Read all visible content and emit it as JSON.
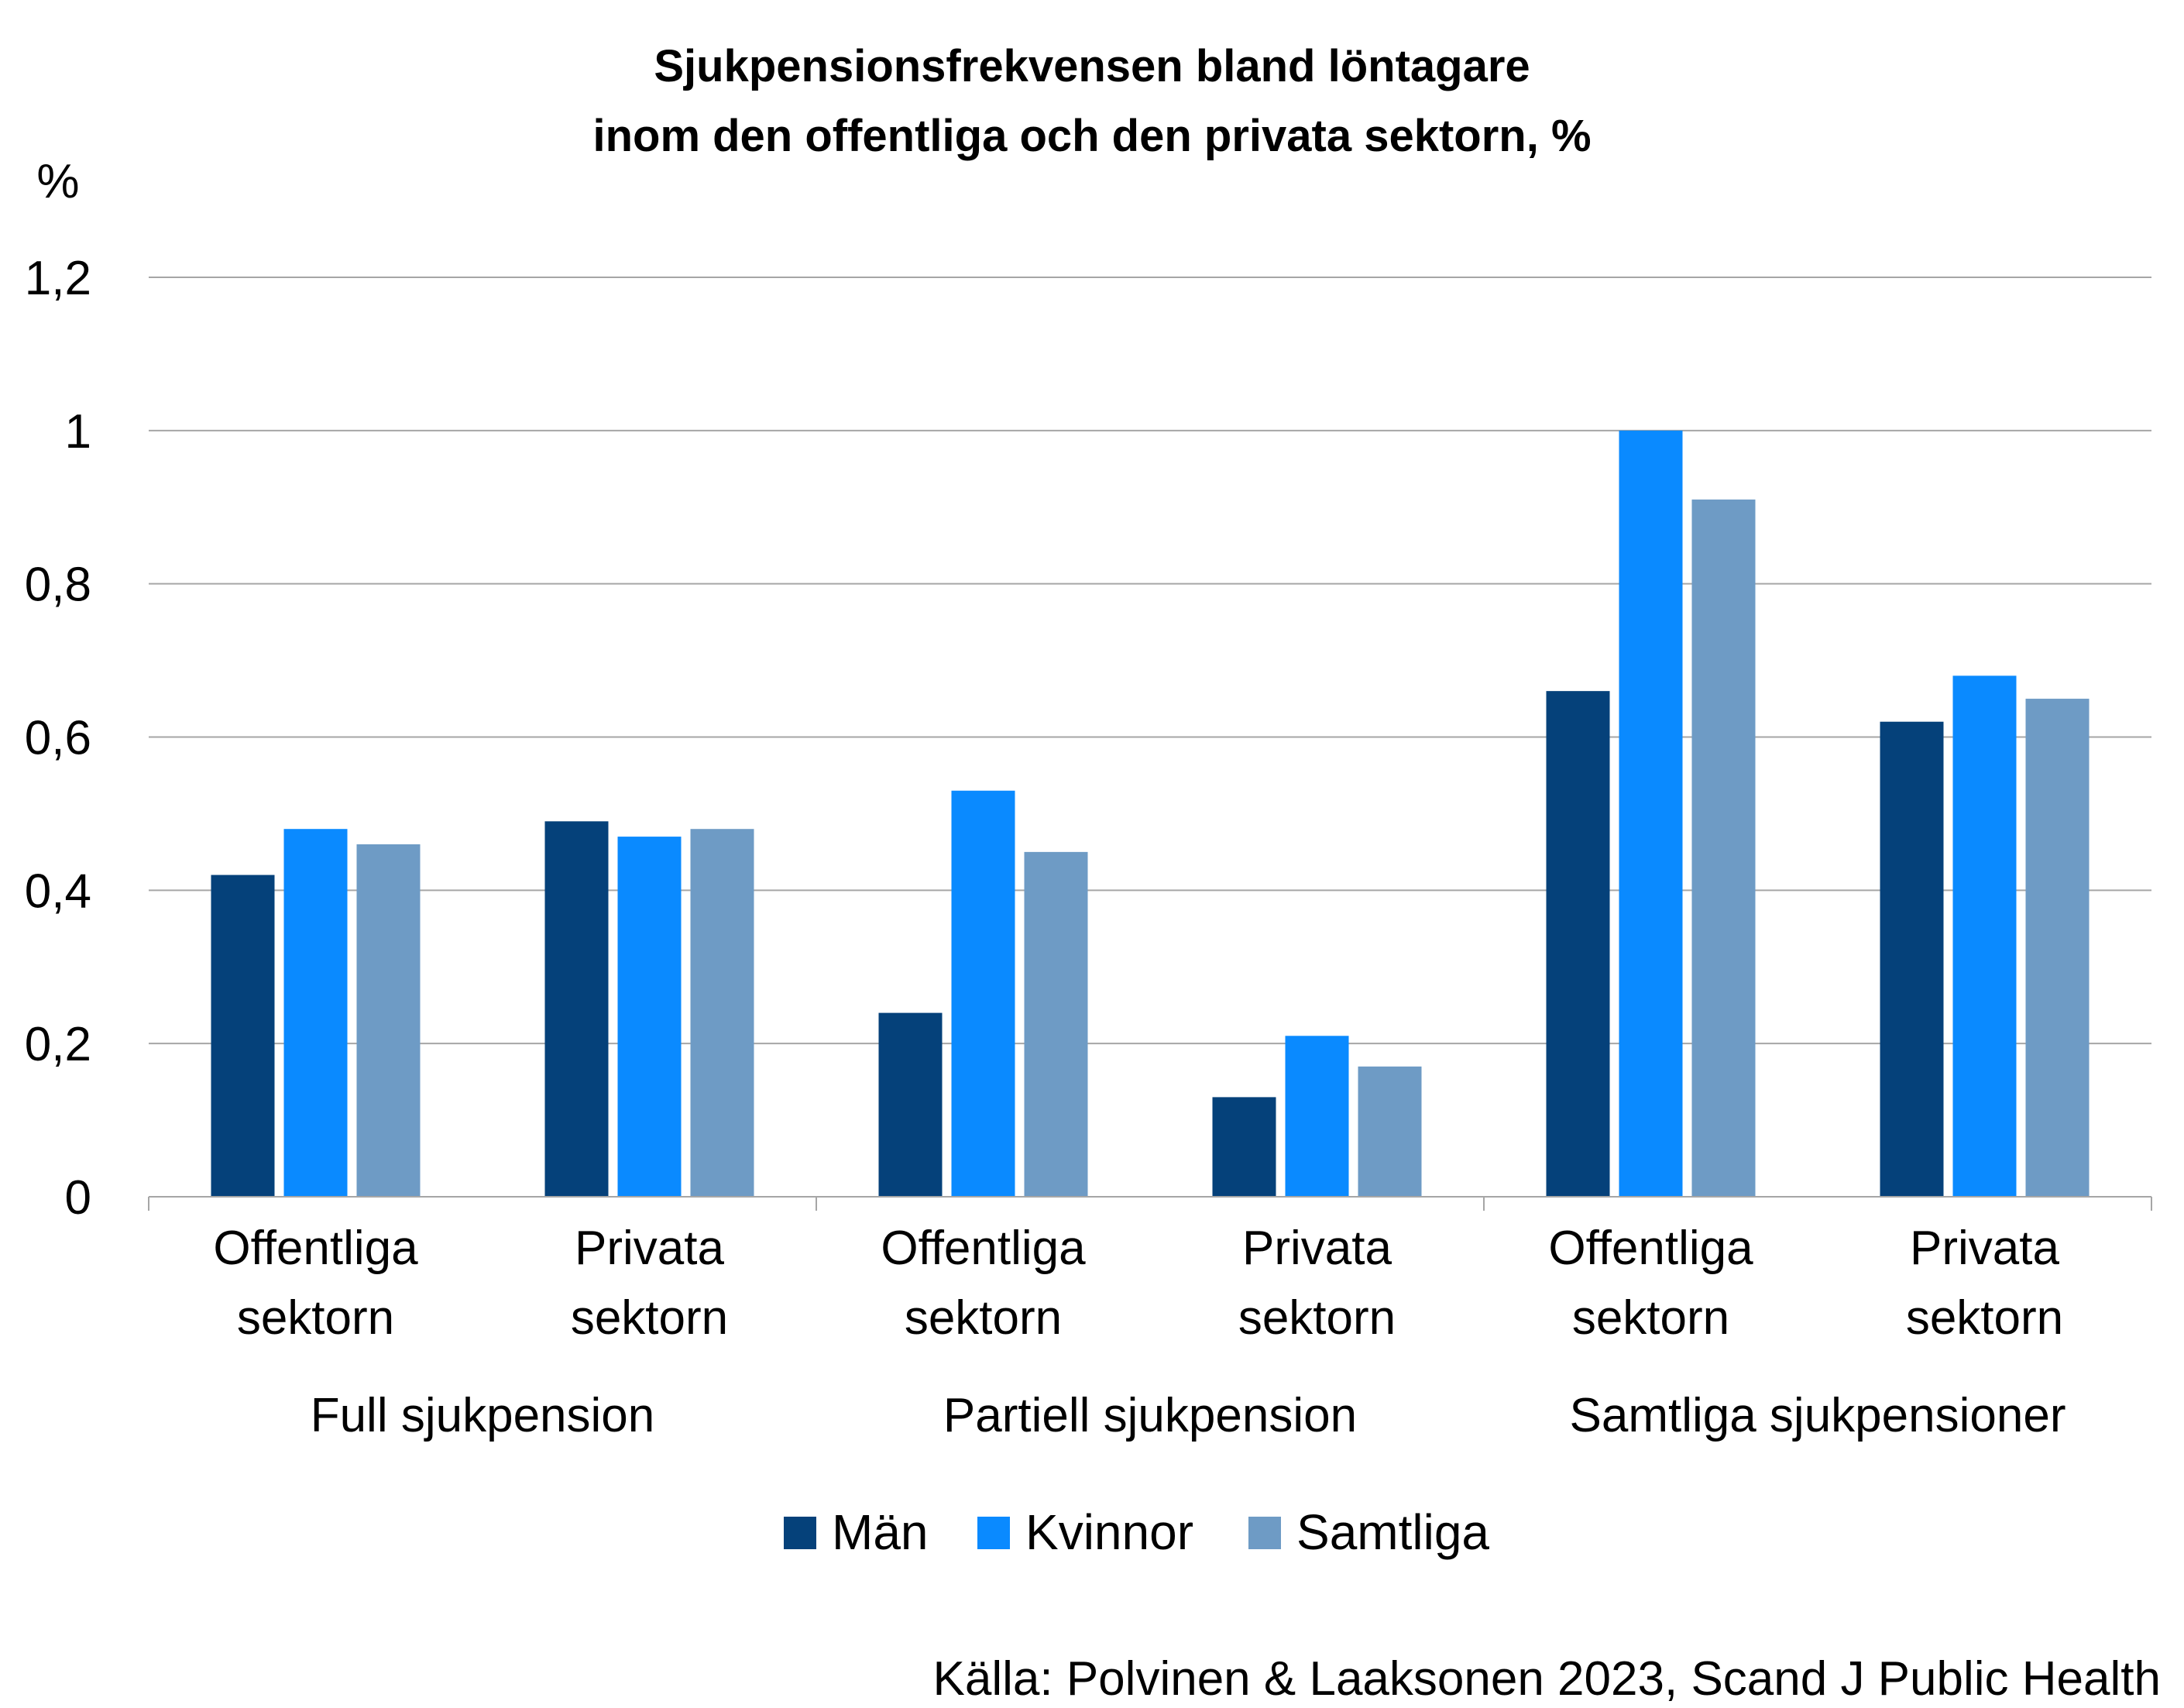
{
  "chart_data": {
    "type": "bar",
    "title_lines": [
      "Sjukpensionsfrekvensen bland löntagare",
      "inom den offentliga och den privata sektorn, %"
    ],
    "ylabel": "%",
    "ylim": [
      0,
      1.2
    ],
    "yticks": [
      {
        "value": 0,
        "label": "0"
      },
      {
        "value": 0.2,
        "label": "0,2"
      },
      {
        "value": 0.4,
        "label": "0,4"
      },
      {
        "value": 0.6,
        "label": "0,6"
      },
      {
        "value": 0.8,
        "label": "0,8"
      },
      {
        "value": 1.0,
        "label": "1"
      },
      {
        "value": 1.2,
        "label": "1,2"
      }
    ],
    "grid": true,
    "groups": [
      "Full sjukpension",
      "Partiell sjukpension",
      "Samtliga sjukpensioner"
    ],
    "categories": [
      [
        "Offentliga",
        "sektorn"
      ],
      [
        "Privata",
        "sektorn"
      ],
      [
        "Offentliga",
        "sektorn"
      ],
      [
        "Privata",
        "sektorn"
      ],
      [
        "Offentliga",
        "sektorn"
      ],
      [
        "Privata",
        "sektorn"
      ]
    ],
    "series": [
      {
        "name": "Män",
        "color": "#05417A",
        "values": [
          0.42,
          0.49,
          0.24,
          0.13,
          0.66,
          0.62
        ]
      },
      {
        "name": "Kvinnor",
        "color": "#0A8AFF",
        "values": [
          0.48,
          0.47,
          0.53,
          0.21,
          1.0,
          0.68
        ]
      },
      {
        "name": "Samtliga",
        "color": "#6E9BC5",
        "values": [
          0.46,
          0.48,
          0.45,
          0.17,
          0.91,
          0.65
        ]
      }
    ],
    "legend_position": "bottom",
    "source": "Källa: Polvinen & Laaksonen 2023, Scand J Public Health"
  }
}
